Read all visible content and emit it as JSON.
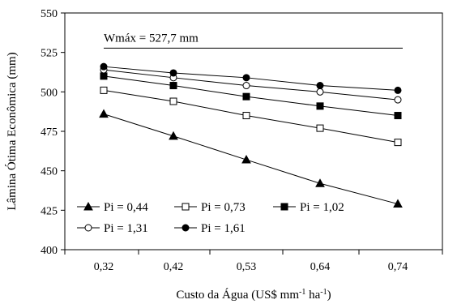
{
  "chart_data": {
    "type": "line",
    "title": "",
    "xlabel": {
      "main": "Custo da Água (US$ mm",
      "sup1": "-1",
      "mid": " ha",
      "sup2": "-1",
      "end": ")"
    },
    "ylabel": "Lâmina Ótima Econômica (mm)",
    "categories": [
      "0,32",
      "0,42",
      "0,53",
      "0,64",
      "0,74"
    ],
    "ylim": [
      400,
      550
    ],
    "yticks": [
      400,
      425,
      450,
      475,
      500,
      525,
      550
    ],
    "grid": false,
    "legend_position": "bottom-left",
    "annotation": {
      "label": "Wmáx = 527,7 mm",
      "value": 527.7
    },
    "series": [
      {
        "name": "Pi = 0,44",
        "marker": "triangle-filled",
        "values": [
          486,
          472,
          457,
          442,
          429
        ]
      },
      {
        "name": "Pi = 0,73",
        "marker": "square-open",
        "values": [
          501,
          494,
          485,
          477,
          468
        ]
      },
      {
        "name": "Pi = 1,02",
        "marker": "square-filled",
        "values": [
          510,
          504,
          497,
          491,
          485
        ]
      },
      {
        "name": "Pi = 1,31",
        "marker": "circle-open",
        "values": [
          514,
          509,
          504,
          500,
          495
        ]
      },
      {
        "name": "Pi = 1,61",
        "marker": "circle-filled",
        "values": [
          516,
          512,
          509,
          504,
          501
        ]
      }
    ]
  }
}
